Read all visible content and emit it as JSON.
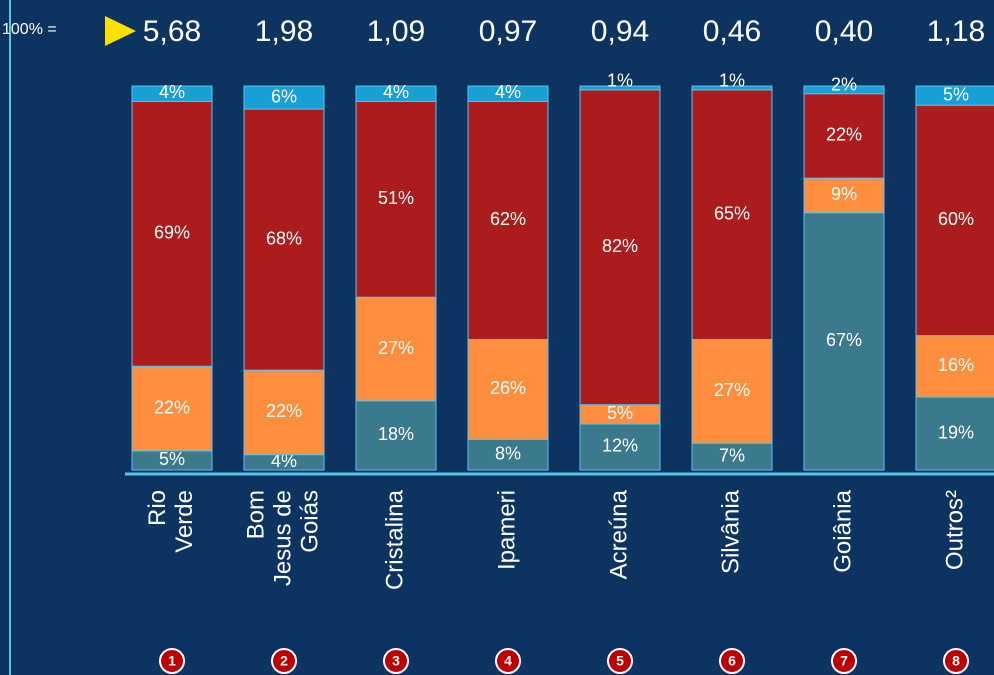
{
  "chart_data": {
    "type": "stacked_bar_100",
    "total_prefix": "100% =",
    "categories": [
      [
        "Rio",
        "Verde"
      ],
      [
        "Bom",
        "Jesus de",
        "Goiás"
      ],
      [
        "Cristalina"
      ],
      [
        "Ipameri"
      ],
      [
        "Acreúna"
      ],
      [
        "Silvânia"
      ],
      [
        "Goiânia"
      ],
      [
        "Outros²"
      ]
    ],
    "markers": [
      "1",
      "2",
      "3",
      "4",
      "5",
      "6",
      "7",
      "8"
    ],
    "totals": [
      5.68,
      1.98,
      1.09,
      0.97,
      0.94,
      0.46,
      0.4,
      1.18
    ],
    "totals_labels": [
      "5,68",
      "1,98",
      "1,09",
      "0,97",
      "0,94",
      "0,46",
      "0,40",
      "1,18"
    ],
    "ylim": [
      0,
      100
    ],
    "series": [
      {
        "color": "#3b7a8c",
        "values": [
          5,
          4,
          18,
          8,
          12,
          7,
          67,
          19
        ],
        "value_labels": [
          "5%",
          "4%",
          "18%",
          "8%",
          "12%",
          "7%",
          "67%",
          "19%"
        ]
      },
      {
        "color": "#ff8f3f",
        "values": [
          22,
          22,
          27,
          26,
          5,
          27,
          9,
          16
        ],
        "value_labels": [
          "22%",
          "22%",
          "27%",
          "26%",
          "5%",
          "27%",
          "9%",
          "16%"
        ]
      },
      {
        "color": "#ad1c1c",
        "values": [
          69,
          68,
          51,
          62,
          82,
          65,
          22,
          60
        ],
        "value_labels": [
          "69%",
          "68%",
          "51%",
          "62%",
          "82%",
          "65%",
          "22%",
          "60%"
        ]
      },
      {
        "color": "#16a0d6",
        "values": [
          4,
          6,
          4,
          4,
          1,
          1,
          2,
          5
        ],
        "value_labels": [
          "4%",
          "6%",
          "4%",
          "4%",
          "1%",
          "1%",
          "2%",
          "5%"
        ]
      }
    ]
  }
}
